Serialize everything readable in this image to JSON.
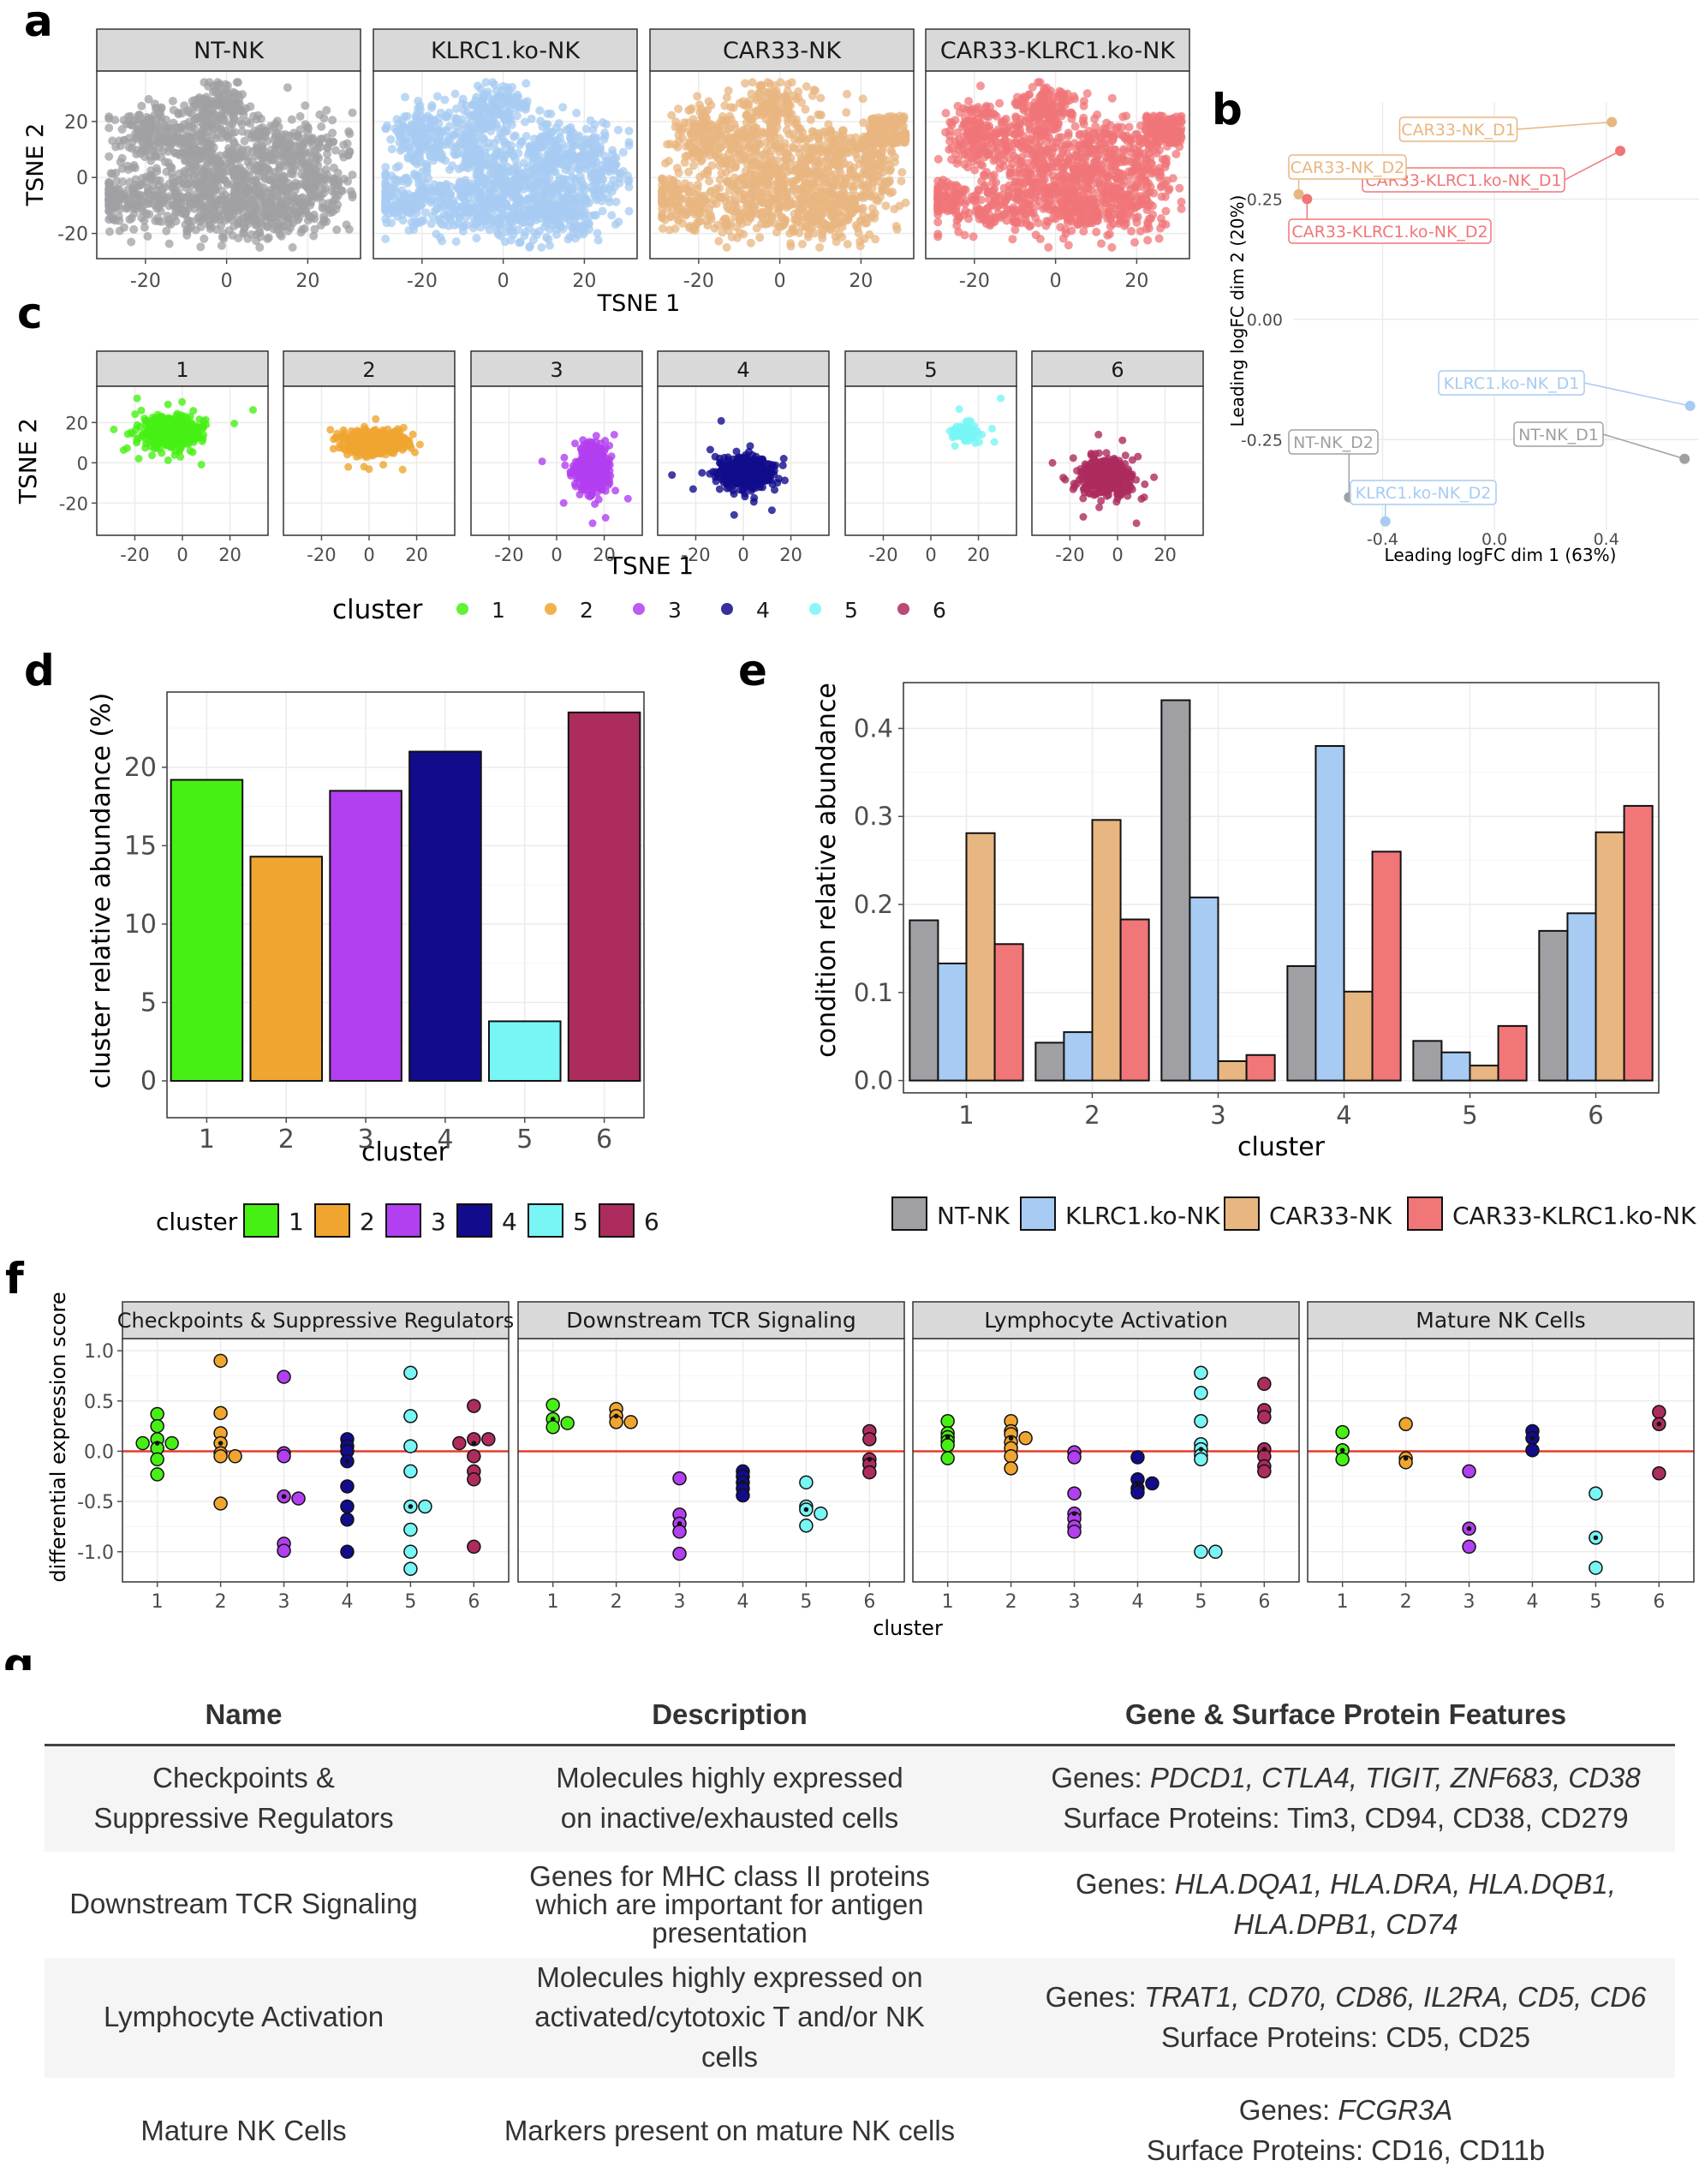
{
  "panel_labels": {
    "a": "a",
    "b": "b",
    "c": "c",
    "d": "d",
    "e": "e",
    "f": "f",
    "g": "g"
  },
  "colors": {
    "conditions": [
      "#a0a0a4",
      "#a7cbf2",
      "#e8b680",
      "#f07678"
    ],
    "clusters": [
      "#47f014",
      "#efa52f",
      "#b23ff0",
      "#120c8c",
      "#78f5f5",
      "#ad2c5e"
    ],
    "zero_line": "#e53b2c"
  },
  "chart_data": [
    {
      "id": "a",
      "type": "scatter",
      "facets": [
        "NT-NK",
        "KLRC1.ko-NK",
        "CAR33-NK",
        "CAR33-KLRC1.ko-NK"
      ],
      "xlabel": "TSNE 1",
      "ylabel": "TSNE 2",
      "xticks": [
        "-20",
        "0",
        "20"
      ],
      "yticks": [
        "20",
        "0",
        "-20"
      ],
      "xlim": [
        -32,
        33
      ],
      "ylim": [
        -29,
        38
      ]
    },
    {
      "id": "b",
      "type": "scatter",
      "xlabel": "Leading logFC dim 1 (63%)",
      "ylabel": "Leading logFC dim 2 (20%)",
      "xticks": [
        "-0.4",
        "0.0",
        "0.4"
      ],
      "yticks": [
        "0.25",
        "0.00",
        "-0.25"
      ],
      "xlim": [
        -0.72,
        0.75
      ],
      "ylim": [
        -0.44,
        0.45
      ],
      "points": [
        {
          "label": "CAR33-NK_D1",
          "x": 0.42,
          "y": 0.41,
          "cond": 2
        },
        {
          "label": "CAR33-KLRC1.ko-NK_D1",
          "x": 0.45,
          "y": 0.35,
          "cond": 3
        },
        {
          "label": "CAR33-NK_D2",
          "x": -0.7,
          "y": 0.26,
          "cond": 2
        },
        {
          "label": "CAR33-KLRC1.ko-NK_D2",
          "x": -0.67,
          "y": 0.25,
          "cond": 3
        },
        {
          "label": "KLRC1.ko-NK_D1",
          "x": 0.7,
          "y": -0.18,
          "cond": 1
        },
        {
          "label": "NT-NK_D1",
          "x": 0.68,
          "y": -0.29,
          "cond": 0
        },
        {
          "label": "NT-NK_D2",
          "x": -0.52,
          "y": -0.37,
          "cond": 0
        },
        {
          "label": "KLRC1.ko-NK_D2",
          "x": -0.39,
          "y": -0.42,
          "cond": 1
        }
      ]
    },
    {
      "id": "c",
      "type": "scatter",
      "facets": [
        "1",
        "2",
        "3",
        "4",
        "5",
        "6"
      ],
      "xlabel": "TSNE 1",
      "ylabel": "TSNE 2",
      "xticks": [
        "-20",
        "0",
        "20"
      ],
      "yticks": [
        "20",
        "0",
        "-20"
      ],
      "xlim": [
        -36,
        36
      ],
      "ylim": [
        -36,
        38
      ],
      "legend_title": "cluster",
      "legend_labels": [
        "1",
        "2",
        "3",
        "4",
        "5",
        "6"
      ]
    },
    {
      "id": "d",
      "type": "bar",
      "categories": [
        "1",
        "2",
        "3",
        "4",
        "5",
        "6"
      ],
      "values": [
        19.2,
        14.3,
        18.5,
        21.0,
        3.8,
        23.5
      ],
      "xlabel": "cluster",
      "ylabel": "cluster relative abundance (%)",
      "yticks": [
        "0",
        "5",
        "10",
        "15",
        "20"
      ],
      "ylim": [
        0,
        24.8
      ],
      "legend_title": "cluster",
      "legend_labels": [
        "1",
        "2",
        "3",
        "4",
        "5",
        "6"
      ]
    },
    {
      "id": "e",
      "type": "bar",
      "categories": [
        "1",
        "2",
        "3",
        "4",
        "5",
        "6"
      ],
      "series": [
        {
          "name": "NT-NK",
          "values": [
            0.182,
            0.043,
            0.432,
            0.13,
            0.045,
            0.17
          ]
        },
        {
          "name": "KLRC1.ko-NK",
          "values": [
            0.133,
            0.055,
            0.208,
            0.38,
            0.032,
            0.19
          ]
        },
        {
          "name": "CAR33-NK",
          "values": [
            0.281,
            0.296,
            0.022,
            0.101,
            0.017,
            0.282
          ]
        },
        {
          "name": "CAR33-KLRC1.ko-NK",
          "values": [
            0.155,
            0.183,
            0.029,
            0.26,
            0.062,
            0.312
          ]
        }
      ],
      "xlabel": "cluster",
      "ylabel": "condition relative abundance",
      "yticks": [
        "0.0",
        "0.1",
        "0.2",
        "0.3",
        "0.4"
      ],
      "ylim": [
        -0.014,
        0.452
      ]
    },
    {
      "id": "f",
      "type": "scatter",
      "facets": [
        "Checkpoints & Suppressive Regulators",
        "Downstream TCR Signaling",
        "Lymphocyte Activation",
        "Mature NK Cells"
      ],
      "xlabel": "cluster",
      "ylabel": "differential expression score",
      "xticks": [
        "1",
        "2",
        "3",
        "4",
        "5",
        "6"
      ],
      "yticks": [
        "1.0",
        "0.5",
        "0.0",
        "-0.5",
        "-1.0"
      ],
      "ylim": [
        -1.3,
        1.12
      ],
      "groups": [
        [
          [
            0.37,
            0.25,
            0.12,
            0.08,
            0.08,
            0.03,
            -0.08,
            -0.23
          ],
          [
            0.9,
            0.38,
            0.18,
            0.08,
            -0.02,
            -0.05,
            -0.05,
            -0.52
          ],
          [
            0.74,
            -0.02,
            -0.05,
            -0.45,
            -0.47,
            -0.92,
            -0.99
          ],
          [
            0.12,
            0.05,
            0.0,
            -0.1,
            -0.35,
            -0.55,
            -0.68,
            -1.0
          ],
          [
            0.78,
            0.35,
            0.05,
            -0.2,
            -0.55,
            -0.55,
            -0.78,
            -1.0,
            -1.17
          ],
          [
            0.45,
            0.12,
            0.12,
            0.08,
            -0.05,
            -0.2,
            -0.28,
            -0.95
          ]
        ],
        [
          [
            0.46,
            0.32,
            0.28,
            0.24
          ],
          [
            0.42,
            0.35,
            0.29,
            0.29
          ],
          [
            -0.27,
            -0.63,
            -0.72,
            -0.8,
            -1.02
          ],
          [
            -0.2,
            -0.25,
            -0.31,
            -0.37,
            -0.44
          ],
          [
            -0.31,
            -0.55,
            -0.58,
            -0.62,
            -0.74
          ],
          [
            0.2,
            0.12,
            -0.08,
            -0.13,
            -0.21
          ]
        ],
        [
          [
            0.3,
            0.18,
            0.14,
            0.1,
            0.06,
            -0.07
          ],
          [
            0.3,
            0.2,
            0.17,
            0.13,
            0.09,
            0.03,
            -0.05,
            -0.17
          ],
          [
            -0.01,
            -0.06,
            -0.42,
            -0.62,
            -0.67,
            -0.75,
            -0.8
          ],
          [
            -0.06,
            -0.28,
            -0.32,
            -0.37,
            -0.41
          ],
          [
            0.78,
            0.58,
            0.3,
            0.07,
            0.02,
            -0.04,
            -0.08,
            -1.0,
            -1.0
          ],
          [
            0.67,
            0.41,
            0.34,
            0.02,
            -0.05,
            -0.15,
            -0.2
          ]
        ],
        [
          [
            0.19,
            0.01,
            -0.08
          ],
          [
            0.27,
            -0.07,
            -0.11
          ],
          [
            -0.2,
            -0.77,
            -0.95
          ],
          [
            0.2,
            0.13,
            0.01
          ],
          [
            -0.42,
            -0.86,
            -1.16
          ],
          [
            0.39,
            0.27,
            -0.22
          ]
        ]
      ]
    }
  ],
  "table": {
    "headers": [
      "Name",
      "Description",
      "Gene & Surface Protein Features"
    ],
    "rows": [
      {
        "name": "Checkpoints & Suppressive Regulators",
        "desc": "Molecules highly expressed on inactive/exhausted cells",
        "genes_prefix": "Genes: ",
        "genes": "PDCD1, CTLA4, TIGIT, ZNF683, CD38",
        "proteins": "Surface Proteins: Tim3, CD94, CD38, CD279"
      },
      {
        "name": "Downstream TCR Signaling",
        "desc": "Genes for MHC class II proteins which are important for antigen presentation",
        "genes_prefix": "Genes: ",
        "genes": "HLA.DQA1, HLA.DRA, HLA.DQB1, HLA.DPB1, CD74",
        "proteins": ""
      },
      {
        "name": "Lymphocyte Activation",
        "desc": "Molecules highly expressed on activated/cytotoxic T and/or NK cells",
        "genes_prefix": "Genes: ",
        "genes": "TRAT1, CD70, CD86, IL2RA, CD5, CD6",
        "proteins": "Surface Proteins: CD5, CD25"
      },
      {
        "name": "Mature NK Cells",
        "desc": "Markers present on mature NK cells",
        "genes_prefix": "Genes: ",
        "genes": "FCGR3A",
        "proteins": "Surface Proteins: CD16, CD11b"
      }
    ]
  }
}
